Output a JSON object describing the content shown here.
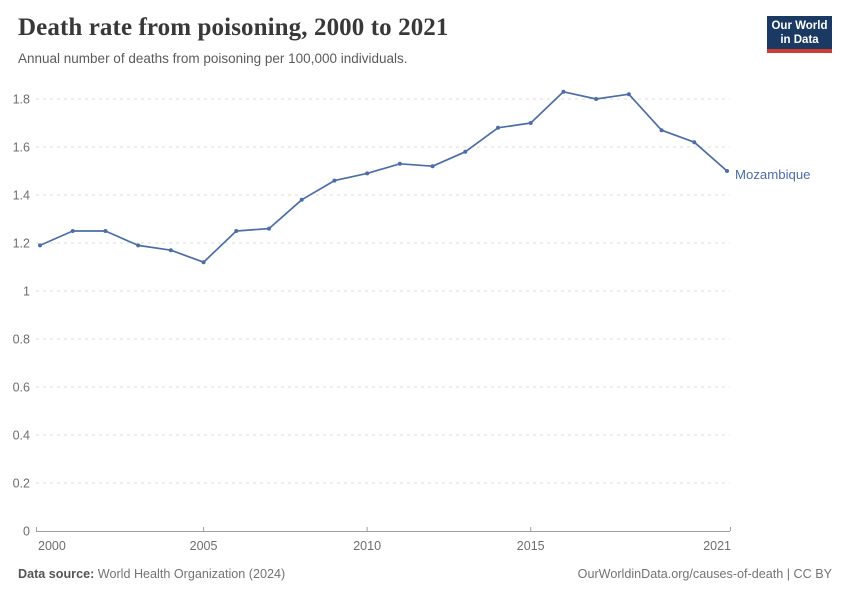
{
  "header": {
    "title": "Death rate from poisoning, 2000 to 2021",
    "subtitle": "Annual number of deaths from poisoning per 100,000 individuals."
  },
  "logo": {
    "line1": "Our World",
    "line2": "in Data"
  },
  "chart_data": {
    "type": "line",
    "title": "Death rate from poisoning, 2000 to 2021",
    "x": [
      2000,
      2001,
      2002,
      2003,
      2004,
      2005,
      2006,
      2007,
      2008,
      2009,
      2010,
      2011,
      2012,
      2013,
      2014,
      2015,
      2016,
      2017,
      2018,
      2019,
      2020,
      2021
    ],
    "series": [
      {
        "name": "Mozambique",
        "color": "#4c6da8",
        "values": [
          1.19,
          1.25,
          1.25,
          1.19,
          1.17,
          1.12,
          1.25,
          1.26,
          1.38,
          1.46,
          1.49,
          1.53,
          1.52,
          1.58,
          1.68,
          1.7,
          1.83,
          1.8,
          1.82,
          1.67,
          1.62,
          1.5
        ]
      }
    ],
    "xlabel": "",
    "ylabel": "",
    "xlim": [
      2000,
      2021
    ],
    "ylim": [
      0,
      1.9
    ],
    "y_ticks": [
      0,
      0.2,
      0.4,
      0.6,
      0.8,
      1,
      1.2,
      1.4,
      1.6,
      1.8
    ],
    "x_ticks": [
      2000,
      2005,
      2010,
      2015,
      2021
    ],
    "grid": "horizontal-dashed",
    "legend": "line-end-label"
  },
  "footer": {
    "datasource_label": "Data source:",
    "datasource_value": " World Health Organization (2024)",
    "link": "OurWorldinData.org/causes-of-death | CC BY"
  },
  "colors": {
    "line": "#4c6da8",
    "gridline": "#dcdcdc",
    "axis": "#a0a0a0",
    "tick_text": "#6e6e6e",
    "logo_bg": "#1b3a63",
    "logo_red": "#cf3b31"
  }
}
